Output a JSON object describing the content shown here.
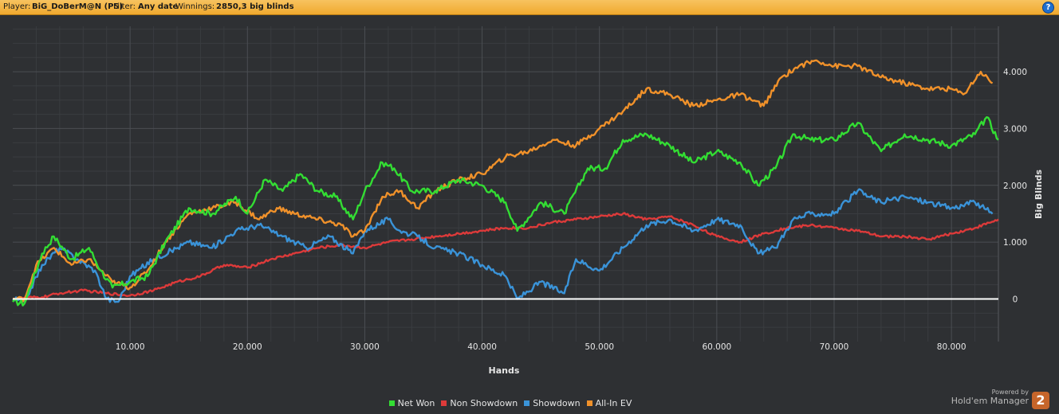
{
  "header": {
    "player_label": "Player:",
    "player_name": "BiG_DoBerM@N (PS)",
    "filter_label": "Filter:",
    "filter_value": "Any date",
    "winnings_label": "Winnings:",
    "winnings_value": "2850,3 big blinds",
    "help_glyph": "?",
    "help_icon": "question-icon"
  },
  "colors": {
    "header_bg": "#f2b040",
    "chart_bg": "#2e3033",
    "net_won": "#33dd33",
    "non_showdown": "#dd3a3a",
    "showdown": "#3a93d8",
    "all_in_ev": "#f0912a",
    "zero_line": "#ffffff"
  },
  "chart_data": {
    "type": "line",
    "xlabel": "Hands",
    "ylabel": "Big Blinds",
    "xlim": [
      0,
      84000
    ],
    "ylim": [
      -750,
      4800
    ],
    "x_ticks": [
      10000,
      20000,
      30000,
      40000,
      50000,
      60000,
      70000,
      80000
    ],
    "x_tick_labels": [
      "10.000",
      "20.000",
      "30.000",
      "40.000",
      "50.000",
      "60.000",
      "70.000",
      "80.000"
    ],
    "y_ticks": [
      0,
      1000,
      2000,
      3000,
      4000
    ],
    "y_tick_labels": [
      "0",
      "1.000",
      "2.000",
      "3.000",
      "4.000"
    ],
    "y_axis_side": "right",
    "grid": true,
    "legend_position": "bottom-center",
    "series": [
      {
        "name": "Net Won",
        "x": [
          0,
          1000,
          2500,
          3500,
          5000,
          6500,
          7500,
          8500,
          10000,
          11500,
          13000,
          15000,
          17000,
          19000,
          20000,
          21500,
          23000,
          24500,
          26000,
          27500,
          29000,
          30000,
          31500,
          32500,
          34000,
          36000,
          38000,
          40000,
          42000,
          43000,
          45000,
          47000,
          49000,
          50500,
          52000,
          54000,
          56000,
          58000,
          60000,
          62000,
          63500,
          65000,
          66500,
          68000,
          70000,
          72000,
          74000,
          76000,
          78000,
          80000,
          82000,
          83000,
          84000
        ],
        "values": [
          -50,
          -80,
          800,
          1100,
          700,
          900,
          500,
          200,
          300,
          400,
          1000,
          1600,
          1500,
          1800,
          1500,
          2100,
          1900,
          2200,
          1900,
          1800,
          1400,
          1900,
          2400,
          2300,
          1900,
          1900,
          2100,
          2000,
          1700,
          1200,
          1700,
          1500,
          2300,
          2300,
          2800,
          2900,
          2700,
          2400,
          2600,
          2400,
          2000,
          2300,
          2900,
          2800,
          2800,
          3100,
          2600,
          2900,
          2800,
          2700,
          2900,
          3200,
          2800
        ]
      },
      {
        "name": "Non Showdown",
        "x": [
          0,
          1000,
          2500,
          4000,
          6000,
          8000,
          10000,
          12000,
          14000,
          16000,
          18000,
          20000,
          22000,
          24000,
          26000,
          28000,
          30000,
          32000,
          34000,
          36000,
          38000,
          40000,
          42000,
          44000,
          46000,
          48000,
          50000,
          52000,
          54000,
          56000,
          58000,
          60000,
          62000,
          64000,
          66000,
          68000,
          70000,
          72000,
          74000,
          76000,
          78000,
          80000,
          82000,
          84000
        ],
        "values": [
          0,
          20,
          30,
          100,
          150,
          100,
          60,
          150,
          300,
          400,
          600,
          550,
          700,
          800,
          900,
          950,
          900,
          1000,
          1050,
          1100,
          1150,
          1200,
          1250,
          1250,
          1350,
          1400,
          1450,
          1500,
          1400,
          1450,
          1300,
          1100,
          1000,
          1150,
          1250,
          1300,
          1250,
          1200,
          1100,
          1100,
          1050,
          1150,
          1250,
          1400
        ]
      },
      {
        "name": "Showdown",
        "x": [
          0,
          1000,
          2500,
          4000,
          5500,
          7000,
          8000,
          9000,
          10000,
          12000,
          13500,
          15000,
          17000,
          19000,
          21000,
          23000,
          25000,
          27000,
          29000,
          30000,
          32000,
          33000,
          34500,
          36000,
          38000,
          40000,
          42000,
          43000,
          45000,
          47000,
          48000,
          50000,
          52000,
          54000,
          56000,
          58000,
          60000,
          62000,
          63500,
          65000,
          66500,
          68000,
          70000,
          72000,
          74000,
          76000,
          78000,
          80000,
          82000,
          83500
        ],
        "values": [
          0,
          -50,
          600,
          900,
          700,
          500,
          0,
          -50,
          400,
          700,
          850,
          1000,
          900,
          1200,
          1300,
          1100,
          900,
          1100,
          800,
          1200,
          1400,
          1200,
          1100,
          900,
          800,
          600,
          400,
          0,
          300,
          100,
          700,
          500,
          900,
          1300,
          1400,
          1200,
          1400,
          1300,
          800,
          900,
          1400,
          1500,
          1500,
          1900,
          1700,
          1800,
          1700,
          1600,
          1700,
          1500
        ]
      },
      {
        "name": "All-In EV",
        "x": [
          0,
          1000,
          2000,
          3500,
          5000,
          6500,
          7500,
          8500,
          10000,
          11500,
          13000,
          15000,
          17000,
          19000,
          21000,
          22500,
          24000,
          26000,
          28000,
          29000,
          30000,
          31500,
          33000,
          34500,
          36000,
          38000,
          40000,
          42000,
          44000,
          46000,
          48000,
          50000,
          52000,
          54000,
          56000,
          58000,
          60000,
          62000,
          64000,
          65500,
          67000,
          68500,
          70000,
          72000,
          74000,
          76000,
          78000,
          80000,
          81000,
          82500,
          83500
        ],
        "values": [
          0,
          0,
          600,
          900,
          600,
          700,
          500,
          300,
          200,
          500,
          1000,
          1500,
          1600,
          1700,
          1400,
          1600,
          1500,
          1400,
          1300,
          1100,
          1200,
          1800,
          1900,
          1600,
          1900,
          2100,
          2200,
          2500,
          2600,
          2800,
          2700,
          3000,
          3300,
          3700,
          3600,
          3400,
          3500,
          3600,
          3400,
          3900,
          4100,
          4200,
          4100,
          4100,
          3900,
          3800,
          3700,
          3700,
          3600,
          4000,
          3800
        ]
      }
    ]
  },
  "legend": [
    {
      "label": "Net Won",
      "color": "#33dd33"
    },
    {
      "label": "Non Showdown",
      "color": "#dd3a3a"
    },
    {
      "label": "Showdown",
      "color": "#3a93d8"
    },
    {
      "label": "All-In EV",
      "color": "#f0912a"
    }
  ],
  "brand": {
    "powered_by": "Powered by",
    "name": "Hold'em Manager",
    "badge": "2"
  }
}
